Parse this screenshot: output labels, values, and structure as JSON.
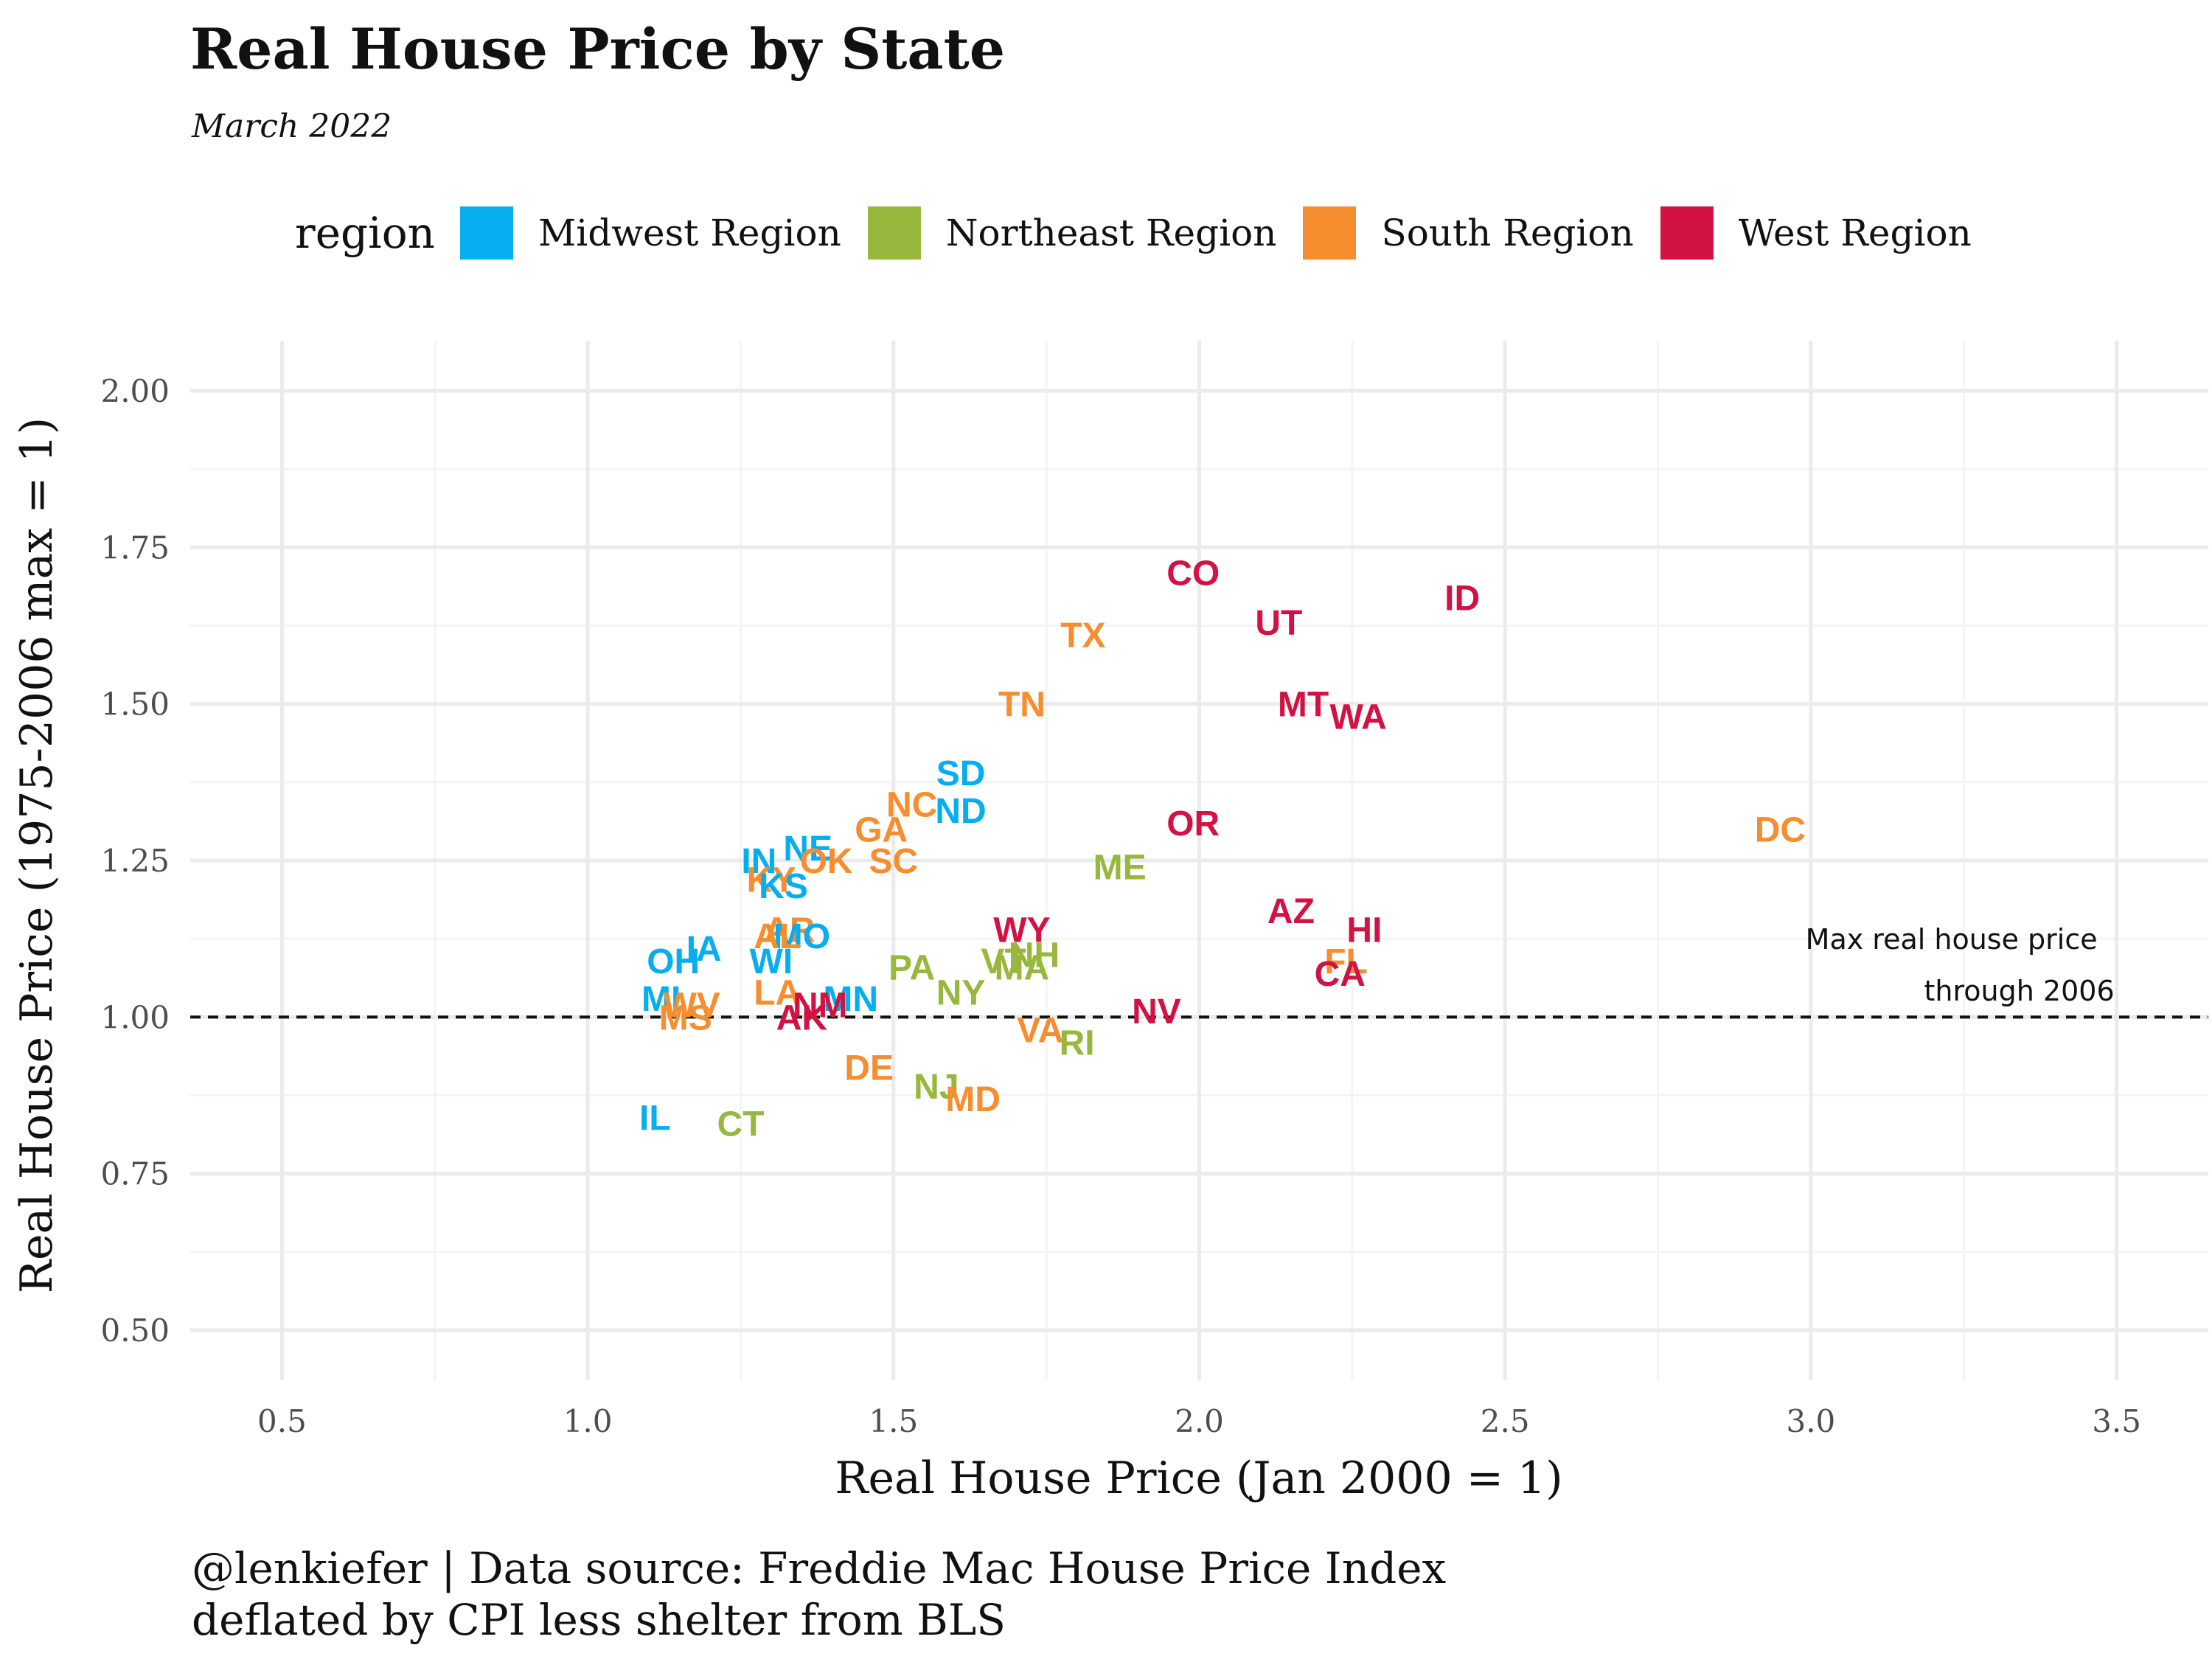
{
  "chart_data": {
    "type": "scatter",
    "title": "Real House Price by State",
    "subtitle": "March 2022",
    "xlabel": "Real House Price (Jan 2000 = 1)",
    "ylabel": "Real House Price (1975-2006 max = 1)",
    "xlim": [
      0.35,
      3.65
    ],
    "ylim": [
      0.42,
      2.08
    ],
    "xticks": [
      "0.5",
      "1.0",
      "1.5",
      "2.0",
      "2.5",
      "3.0",
      "3.5"
    ],
    "yticks": [
      "0.50",
      "0.75",
      "1.00",
      "1.25",
      "1.50",
      "1.75",
      "2.00"
    ],
    "grid": true,
    "legend": {
      "title": "region",
      "placement": "top",
      "entries": [
        {
          "name": "Midwest Region",
          "color": "#06AEEF"
        },
        {
          "name": "Northeast Region",
          "color": "#97B83C"
        },
        {
          "name": "South Region",
          "color": "#F68D2E"
        },
        {
          "name": "West Region",
          "color": "#D11242"
        }
      ]
    },
    "reference_line": {
      "y": 1.0,
      "style": "dashed"
    },
    "annotation": {
      "x": 3.23,
      "y": 1.085,
      "lines": [
        "Max real house price",
        "through 2006"
      ]
    },
    "caption": [
      "@lenkiefer | Data source: Freddie Mac House Price Index",
      "deflated by CPI less shelter from BLS"
    ],
    "points": [
      {
        "label": "CO",
        "region": "West Region",
        "x": 1.99,
        "y": 1.71
      },
      {
        "label": "ID",
        "region": "West Region",
        "x": 2.43,
        "y": 1.67
      },
      {
        "label": "UT",
        "region": "West Region",
        "x": 2.13,
        "y": 1.63
      },
      {
        "label": "TX",
        "region": "South Region",
        "x": 1.81,
        "y": 1.61
      },
      {
        "label": "TN",
        "region": "South Region",
        "x": 1.71,
        "y": 1.5
      },
      {
        "label": "MT",
        "region": "West Region",
        "x": 2.17,
        "y": 1.5
      },
      {
        "label": "WA",
        "region": "West Region",
        "x": 2.26,
        "y": 1.48
      },
      {
        "label": "SD",
        "region": "Midwest Region",
        "x": 1.61,
        "y": 1.39
      },
      {
        "label": "NC",
        "region": "South Region",
        "x": 1.53,
        "y": 1.34
      },
      {
        "label": "ND",
        "region": "Midwest Region",
        "x": 1.61,
        "y": 1.33
      },
      {
        "label": "OR",
        "region": "West Region",
        "x": 1.99,
        "y": 1.31
      },
      {
        "label": "DC",
        "region": "South Region",
        "x": 2.95,
        "y": 1.3
      },
      {
        "label": "GA",
        "region": "South Region",
        "x": 1.48,
        "y": 1.3
      },
      {
        "label": "NE",
        "region": "Midwest Region",
        "x": 1.36,
        "y": 1.27
      },
      {
        "label": "IN",
        "region": "Midwest Region",
        "x": 1.28,
        "y": 1.25
      },
      {
        "label": "OK",
        "region": "South Region",
        "x": 1.39,
        "y": 1.25
      },
      {
        "label": "SC",
        "region": "South Region",
        "x": 1.5,
        "y": 1.25
      },
      {
        "label": "ME",
        "region": "Northeast Region",
        "x": 1.87,
        "y": 1.24
      },
      {
        "label": "KY",
        "region": "South Region",
        "x": 1.3,
        "y": 1.22
      },
      {
        "label": "KS",
        "region": "Midwest Region",
        "x": 1.32,
        "y": 1.21
      },
      {
        "label": "AZ",
        "region": "West Region",
        "x": 2.15,
        "y": 1.17
      },
      {
        "label": "WY",
        "region": "West Region",
        "x": 1.71,
        "y": 1.14
      },
      {
        "label": "HI",
        "region": "West Region",
        "x": 2.27,
        "y": 1.14
      },
      {
        "label": "AR",
        "region": "South Region",
        "x": 1.33,
        "y": 1.14
      },
      {
        "label": "MO",
        "region": "Midwest Region",
        "x": 1.35,
        "y": 1.13
      },
      {
        "label": "AL",
        "region": "South Region",
        "x": 1.31,
        "y": 1.13
      },
      {
        "label": "IA",
        "region": "Midwest Region",
        "x": 1.19,
        "y": 1.11
      },
      {
        "label": "NH",
        "region": "Northeast Region",
        "x": 1.73,
        "y": 1.1
      },
      {
        "label": "FL",
        "region": "South Region",
        "x": 2.24,
        "y": 1.09
      },
      {
        "label": "OH",
        "region": "Midwest Region",
        "x": 1.14,
        "y": 1.09
      },
      {
        "label": "WI",
        "region": "Midwest Region",
        "x": 1.3,
        "y": 1.09
      },
      {
        "label": "VT",
        "region": "Northeast Region",
        "x": 1.68,
        "y": 1.09
      },
      {
        "label": "MA",
        "region": "Northeast Region",
        "x": 1.71,
        "y": 1.08
      },
      {
        "label": "PA",
        "region": "Northeast Region",
        "x": 1.53,
        "y": 1.08
      },
      {
        "label": "CA",
        "region": "West Region",
        "x": 2.23,
        "y": 1.07
      },
      {
        "label": "NY",
        "region": "Northeast Region",
        "x": 1.61,
        "y": 1.04
      },
      {
        "label": "LA",
        "region": "South Region",
        "x": 1.31,
        "y": 1.04
      },
      {
        "label": "MI",
        "region": "Midwest Region",
        "x": 1.12,
        "y": 1.03
      },
      {
        "label": "MN",
        "region": "Midwest Region",
        "x": 1.43,
        "y": 1.03
      },
      {
        "label": "WV",
        "region": "South Region",
        "x": 1.17,
        "y": 1.02
      },
      {
        "label": "NM",
        "region": "West Region",
        "x": 1.38,
        "y": 1.02
      },
      {
        "label": "NV",
        "region": "West Region",
        "x": 1.93,
        "y": 1.01
      },
      {
        "label": "MS",
        "region": "South Region",
        "x": 1.16,
        "y": 1.0
      },
      {
        "label": "AK",
        "region": "West Region",
        "x": 1.35,
        "y": 1.0
      },
      {
        "label": "VA",
        "region": "South Region",
        "x": 1.74,
        "y": 0.98
      },
      {
        "label": "RI",
        "region": "Northeast Region",
        "x": 1.8,
        "y": 0.96
      },
      {
        "label": "DE",
        "region": "South Region",
        "x": 1.46,
        "y": 0.92
      },
      {
        "label": "NJ",
        "region": "Northeast Region",
        "x": 1.57,
        "y": 0.89
      },
      {
        "label": "MD",
        "region": "South Region",
        "x": 1.63,
        "y": 0.87
      },
      {
        "label": "IL",
        "region": "Midwest Region",
        "x": 1.11,
        "y": 0.84
      },
      {
        "label": "CT",
        "region": "Northeast Region",
        "x": 1.25,
        "y": 0.83
      }
    ]
  }
}
